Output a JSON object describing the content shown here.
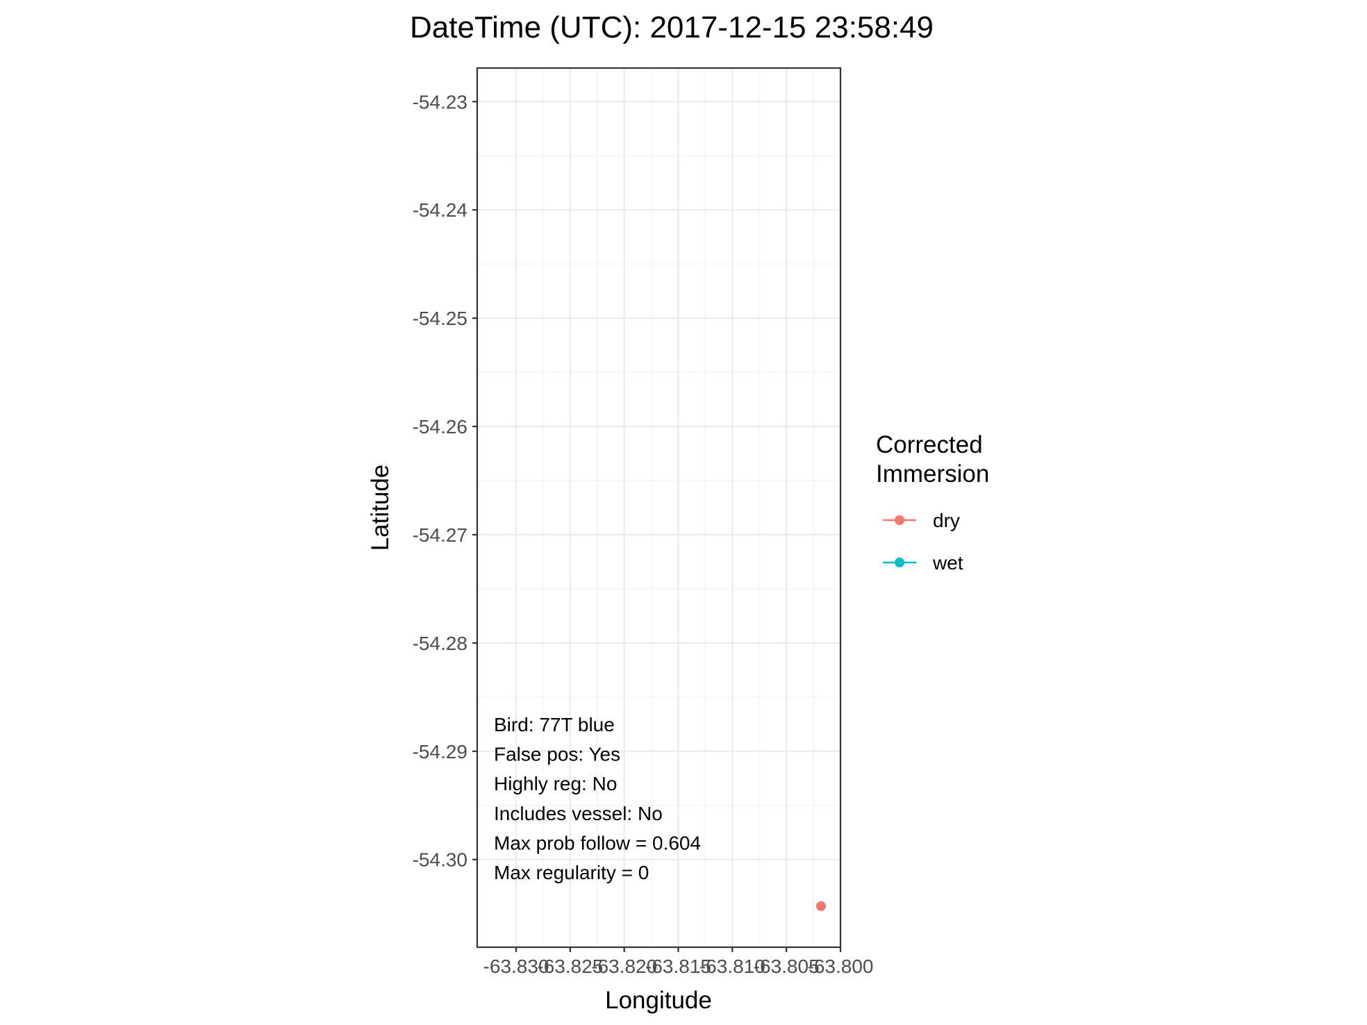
{
  "chart_data": {
    "type": "scatter",
    "title": "DateTime (UTC): 2017-12-15 23:58:49",
    "xlabel": "Longitude",
    "ylabel": "Latitude",
    "xlim": [
      -63.8336,
      -63.8
    ],
    "ylim": [
      -54.3081,
      -54.2269
    ],
    "x_ticks": [
      -63.83,
      -63.825,
      -63.82,
      -63.815,
      -63.81,
      -63.805,
      -63.8
    ],
    "x_tick_labels": [
      "-63.830",
      "-63.825",
      "-63.820",
      "-63.815",
      "-63.810",
      "-63.805",
      "-63.800"
    ],
    "y_ticks": [
      -54.23,
      -54.24,
      -54.25,
      -54.26,
      -54.27,
      -54.28,
      -54.29,
      -54.3
    ],
    "y_tick_labels": [
      "-54.23",
      "-54.24",
      "-54.25",
      "-54.26",
      "-54.27",
      "-54.28",
      "-54.29",
      "-54.30"
    ],
    "grid": true,
    "legend": {
      "title_lines": [
        "Corrected",
        "Immersion"
      ],
      "placement": "right",
      "entries": [
        {
          "label": "dry",
          "color": "#F8766D"
        },
        {
          "label": "wet",
          "color": "#00BFC4"
        }
      ]
    },
    "series": [
      {
        "name": "dry",
        "color": "#F8766D",
        "points": [
          {
            "x": -63.8018,
            "y": -54.3043
          }
        ]
      },
      {
        "name": "wet",
        "color": "#00BFC4",
        "points": []
      }
    ],
    "annotations": [
      "Bird: 77T blue",
      "False pos: Yes",
      "Highly reg: No",
      "Includes vessel: No",
      "Max prob follow = 0.604",
      "Max regularity = 0"
    ]
  }
}
